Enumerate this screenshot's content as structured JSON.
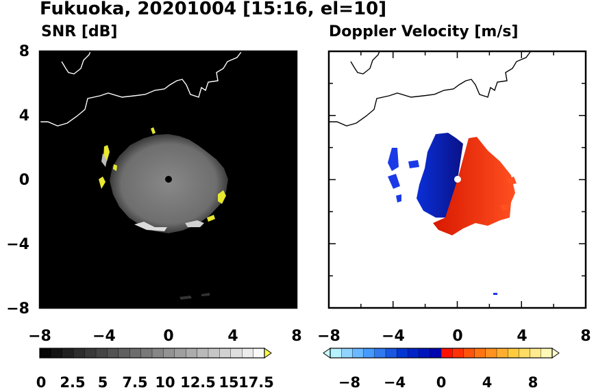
{
  "figure": {
    "title": "Fukuoka, 20201004 [15:16, el=10]"
  },
  "chart_data": [
    {
      "type": "heatmap",
      "title": "SNR [dB]",
      "xlim": [
        -8,
        8
      ],
      "ylim": [
        -8,
        8
      ],
      "xticks": [
        "−8",
        "−4",
        "0",
        "4",
        "8"
      ],
      "yticks": [
        "8",
        "4",
        "0",
        "−4",
        "−8"
      ],
      "echo_radius_km": 3.6,
      "colorbar": {
        "min": 0,
        "max": 20,
        "step": 1,
        "extend": "max",
        "tick_labels": [
          "0",
          "2.5",
          "5",
          "7.5",
          "10",
          "12.5",
          "15",
          "17.5"
        ],
        "colors": [
          "#000000",
          "#ffff44"
        ]
      }
    },
    {
      "type": "heatmap",
      "title": "Doppler Velocity [m/s]",
      "xlim": [
        -8,
        8
      ],
      "ylim": [
        -8,
        8
      ],
      "xticks": [
        "−8",
        "−4",
        "0",
        "4",
        "8"
      ],
      "yticks": [
        "8",
        "4",
        "0",
        "−4",
        "−8"
      ],
      "colorbar": {
        "min": -10,
        "max": 10,
        "step": 1,
        "extend": "both",
        "tick_labels": [
          "−8",
          "−4",
          "0",
          "4",
          "8"
        ],
        "colors": [
          "#c8ffff",
          "#0000aa",
          "#ff0000",
          "#ffffcc"
        ]
      }
    }
  ]
}
